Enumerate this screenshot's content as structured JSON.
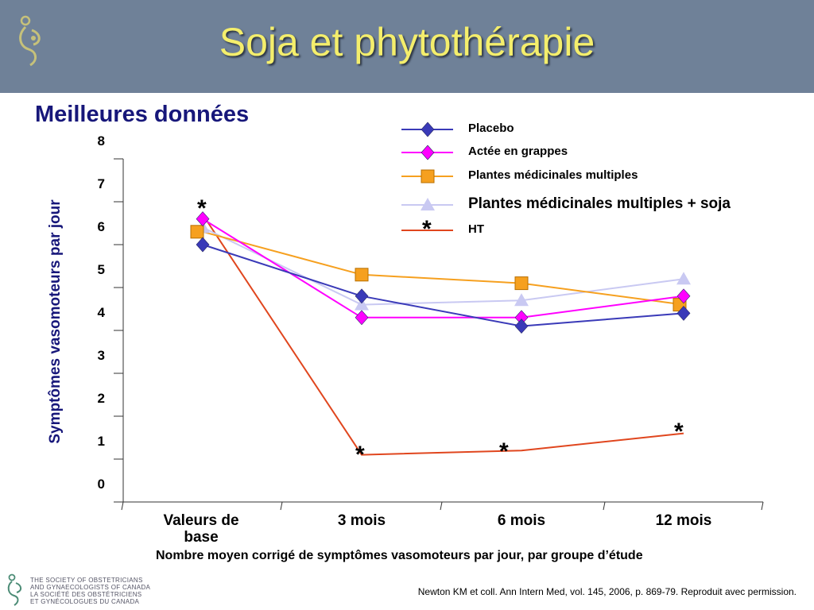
{
  "slide": {
    "title": "Soja et phytothérapie",
    "subtitle": "Meilleures données",
    "caption": "Nombre moyen corrigé de symptômes vasomoteurs par jour, par groupe d’étude",
    "source": "Newton KM et coll. Ann Intern Med, vol. 145, 2006, p. 869-79. Reproduit avec permission.",
    "org_text": [
      "THE SOCIETY OF OBSTETRICIANS",
      "AND GYNAECOLOGISTS OF CANADA",
      "LA SOCIÉTÉ DES OBSTÉTRICIENS",
      "ET GYNÉCOLOGUES DU CANADA"
    ],
    "colors": {
      "header": "#6f8198",
      "title": "#f4ee6c",
      "subtitle": "#17177a"
    }
  },
  "chart_data": {
    "type": "line",
    "categories": [
      "Valeurs de base",
      "3 mois",
      "6 mois",
      "12 mois"
    ],
    "ylabel": "Symptômes vasomoteurs par jour",
    "yticks": [
      "0",
      "1",
      "2",
      "3",
      "4",
      "5",
      "6",
      "7",
      "8"
    ],
    "ylim": [
      0,
      8
    ],
    "legend_position": "top-right",
    "series": [
      {
        "name": "Placebo",
        "values": [
          6.0,
          4.8,
          4.1,
          4.4
        ],
        "color": "#3a3ab8",
        "marker": "diamond"
      },
      {
        "name": "Actée en grappes",
        "values": [
          6.6,
          4.3,
          4.3,
          4.8
        ],
        "color": "#ff00ff",
        "marker": "diamond"
      },
      {
        "name": "Plantes médicinales multiples",
        "values": [
          6.3,
          5.3,
          5.1,
          4.6
        ],
        "color": "#f6a01f",
        "marker": "square"
      },
      {
        "name": "Plantes médicinales multiples + soja",
        "values": [
          6.4,
          4.6,
          4.7,
          5.2
        ],
        "color": "#c9c9f2",
        "marker": "triangle"
      },
      {
        "name": "HT",
        "values": [
          6.7,
          1.1,
          1.2,
          1.6
        ],
        "color": "#e0461e",
        "marker": "none"
      }
    ],
    "annotations": [
      {
        "text": "*",
        "category": "Valeurs de base",
        "y": 6.7
      },
      {
        "text": "*",
        "category": "3 mois",
        "y": 1.1
      },
      {
        "text": "*",
        "category": "6 mois",
        "y": 1.2
      },
      {
        "text": "*",
        "category": "12 mois",
        "y": 1.6
      },
      {
        "text": "*",
        "series": "HT",
        "where": "legend"
      }
    ]
  }
}
